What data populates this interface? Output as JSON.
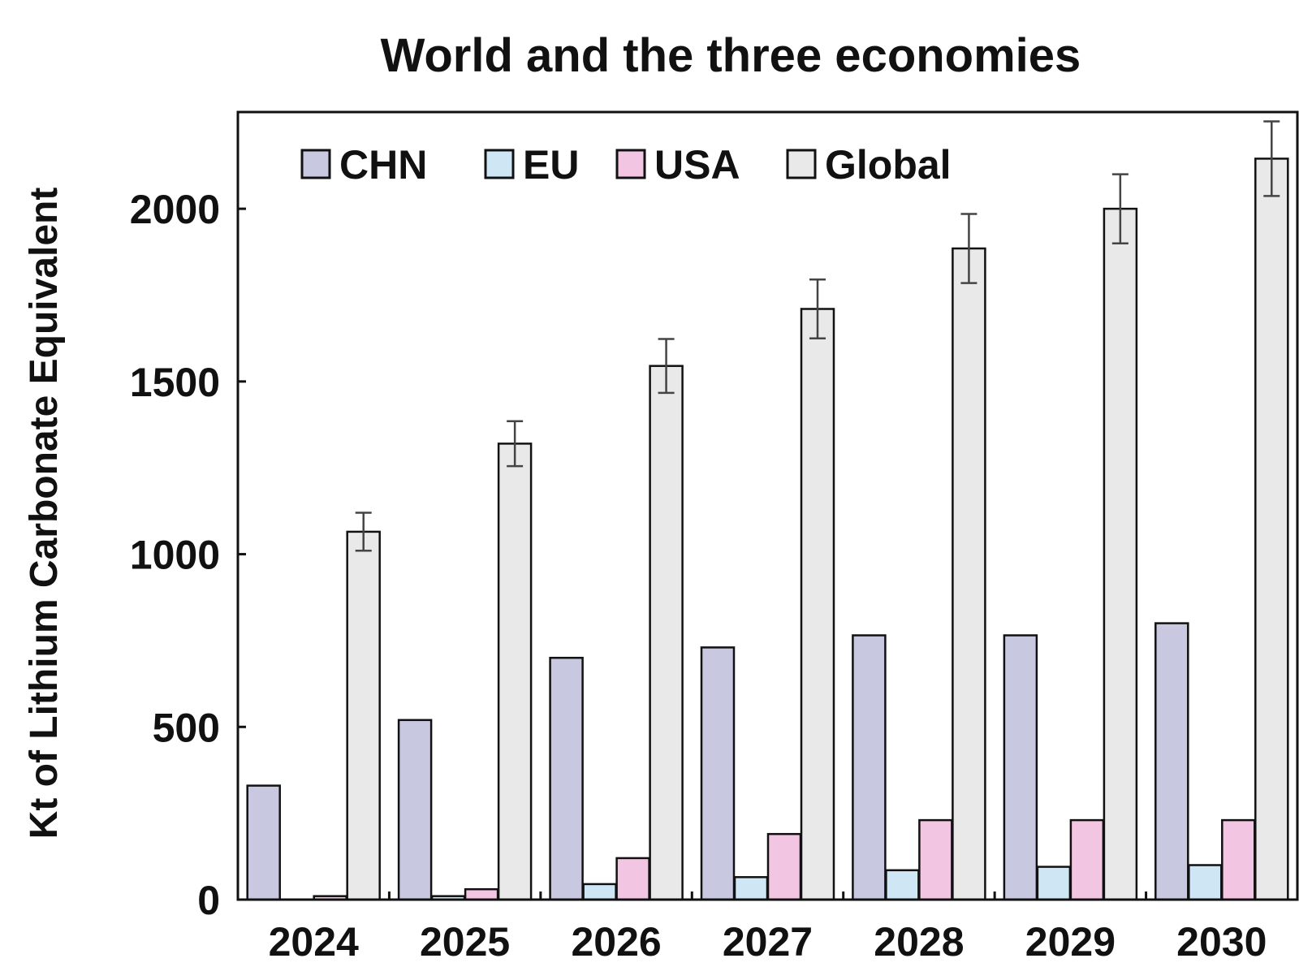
{
  "chart_data": {
    "type": "bar",
    "title": "World and the three economies",
    "xlabel": "",
    "ylabel": "Kt of Lithium Carbonate Equivalent",
    "categories": [
      "2024",
      "2025",
      "2026",
      "2027",
      "2028",
      "2029",
      "2030"
    ],
    "ylim": [
      0,
      2280
    ],
    "yticks": [
      0,
      500,
      1000,
      1500,
      2000
    ],
    "ytick_labels": [
      "0",
      "500",
      "1000",
      "1500",
      "2000"
    ],
    "grid": false,
    "legend_position": "top-left",
    "series": [
      {
        "name": "CHN",
        "color": "#c8c8e0",
        "values": [
          330,
          520,
          700,
          730,
          765,
          765,
          800
        ]
      },
      {
        "name": "EU",
        "color": "#cfe6f5",
        "values": [
          0,
          10,
          45,
          65,
          85,
          95,
          100
        ]
      },
      {
        "name": "USA",
        "color": "#f2c6e2",
        "values": [
          10,
          30,
          120,
          190,
          230,
          230,
          230
        ]
      },
      {
        "name": "Global",
        "color": "#e9e9e9",
        "values": [
          1065,
          1320,
          1545,
          1710,
          1885,
          2000,
          2145
        ],
        "error": [
          55,
          65,
          78,
          85,
          100,
          100,
          108
        ]
      }
    ],
    "notes": "2024: EU has no visible bar; USA shown as a near-zero sliver."
  }
}
